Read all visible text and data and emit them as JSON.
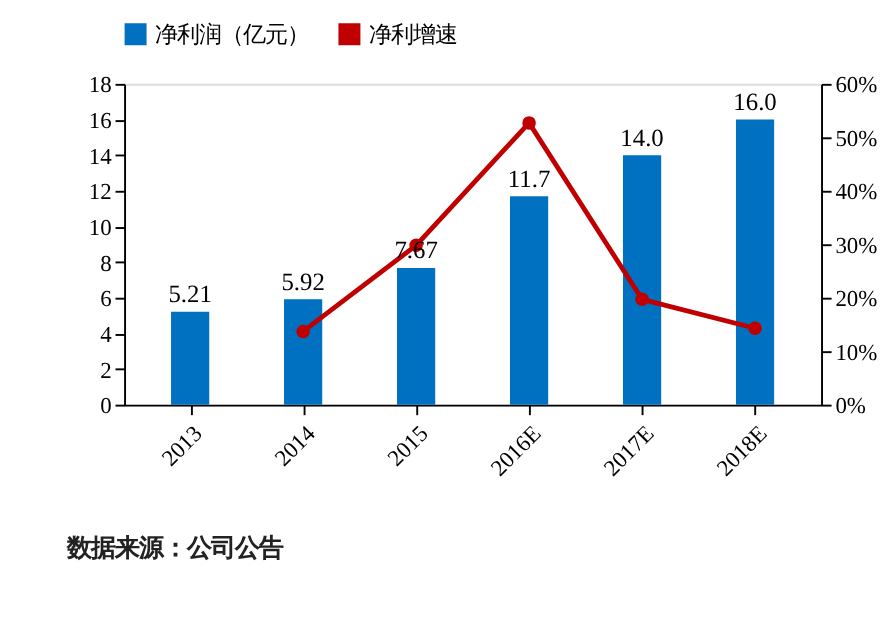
{
  "chart_data": {
    "type": "bar",
    "categories": [
      "2013",
      "2014",
      "2015",
      "2016E",
      "2017E",
      "2018E"
    ],
    "series": [
      {
        "name": "净利润（亿元）",
        "color": "#0070c0",
        "values": [
          5.21,
          5.92,
          7.67,
          11.7,
          14.0,
          16.0
        ],
        "value_labels": [
          "5.21",
          "5.92",
          "7.67",
          "11.7",
          "14.0",
          "16.0"
        ]
      },
      {
        "name": "净利增速",
        "type": "line",
        "axis": "y2",
        "color": "#c00000",
        "marker": "circle",
        "values": [
          null,
          13.7,
          29.8,
          52.7,
          19.7,
          14.3
        ]
      }
    ],
    "ylim": [
      0,
      18
    ],
    "yticks": [
      0,
      2,
      4,
      6,
      8,
      10,
      12,
      14,
      16,
      18
    ],
    "y2lim": [
      0,
      60
    ],
    "y2ticks": [
      {
        "value": 0,
        "label": "0%"
      },
      {
        "value": 10,
        "label": "10%"
      },
      {
        "value": 20,
        "label": "20%"
      },
      {
        "value": 30,
        "label": "30%"
      },
      {
        "value": 40,
        "label": "40%"
      },
      {
        "value": 50,
        "label": "50%"
      },
      {
        "value": 60,
        "label": "60%"
      }
    ],
    "legend": "top",
    "grid": false,
    "annotations": [
      "数据来源：公司公告"
    ]
  }
}
